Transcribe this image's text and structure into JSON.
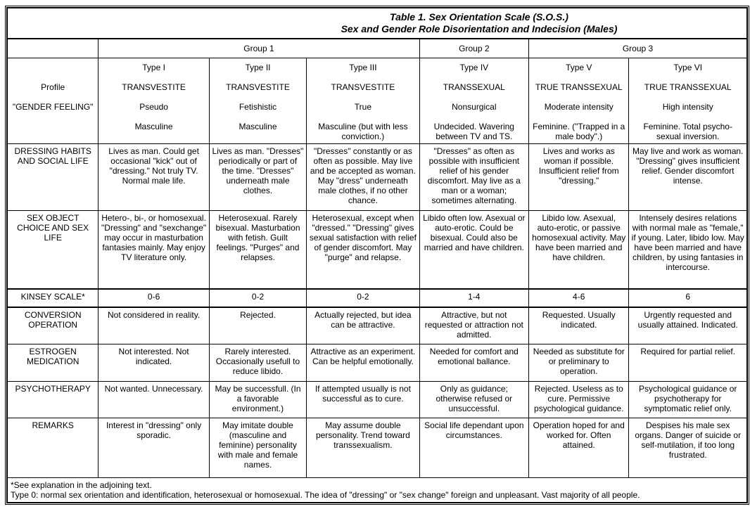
{
  "title": {
    "line1": "Table 1. Sex Orientation Scale (S.O.S.)",
    "line2": "Sex and Gender Role Disorientation and Indecision (Males)"
  },
  "groups": [
    "Group 1",
    "Group 2",
    "Group 3"
  ],
  "profile_labels": [
    "",
    "Profile",
    "\"GENDER FEELING\"",
    ""
  ],
  "types": [
    {
      "type": "Type I",
      "profile": "TRANSVESTITE",
      "feeling": "Pseudo",
      "gender": "Masculine"
    },
    {
      "type": "Type II",
      "profile": "TRANSVESTITE",
      "feeling": "Fetishistic",
      "gender": "Masculine"
    },
    {
      "type": "Type III",
      "profile": "TRANSVESTITE",
      "feeling": "True",
      "gender": "Masculine (but with less conviction.)"
    },
    {
      "type": "Type IV",
      "profile": "TRANSSEXUAL",
      "feeling": "Nonsurgical",
      "gender": "Undecided. Wavering between TV and TS."
    },
    {
      "type": "Type V",
      "profile": "TRUE TRANSSEXUAL",
      "feeling": "Moderate intensity",
      "gender": "Feminine. (\"Trapped in a male body\".)"
    },
    {
      "type": "Type VI",
      "profile": "TRUE TRANSSEXUAL",
      "feeling": "High intensity",
      "gender": "Feminine. Total psycho-sexual inversion."
    }
  ],
  "rows": [
    {
      "label": "DRESSING HABITS AND SOCIAL LIFE",
      "cells": [
        "Lives as man. Could get occasional \"kick\" out of \"dressing.\" Not truly TV. Normal male life.",
        "Lives as man. \"Dresses\" periodically or part of the time. \"Dresses\" underneath male clothes.",
        "\"Dresses\" constantly or as often as possible. May live and be accepted as woman. May \"dress\" underneath male clothes, if no other chance.",
        "\"Dresses\" as often as possible with insufficient relief of his gender discomfort. May live as a man or a woman; sometimes alternating.",
        "Lives and works as woman if possible. Insufficient relief from \"dressing.\"",
        "May live and work as woman. \"Dressing\" gives insufficient relief. Gender discomfort intense."
      ]
    },
    {
      "label": "SEX OBJECT CHOICE AND SEX LIFE",
      "cells": [
        "Hetero-, bi-, or homosexual. \"Dressing\" and \"sexchange\" may occur in masturbation fantasies mainly. May enjoy TV literature only.",
        "Heterosexual. Rarely bisexual. Masturbation with fetish. Guilt feelings. \"Purges\" and relapses.",
        "Heterosexual, except when \"dressed.\" \"Dressing\" gives sexual satisfaction with relief of gender discomfort. May \"purge\" and relapse.",
        "Libido often low. Asexual or auto-erotic. Could be bisexual. Could also be married and have children.",
        "Libido low. Asexual, auto-erotic, or passive homosexual activity. May have been married and have children.",
        "Intensely desires relations with normal male as \"female,\" if young. Later, libido low. May have been married and have children, by using fantasies in intercourse."
      ]
    },
    {
      "label": "KINSEY SCALE*",
      "cells": [
        "0-6",
        "0-2",
        "0-2",
        "1-4",
        "4-6",
        "6"
      ]
    },
    {
      "label": "CONVERSION OPERATION",
      "cells": [
        "Not considered in reality.",
        "Rejected.",
        "Actually rejected, but idea can be attractive.",
        "Attractive, but not requested or attraction not admitted.",
        "Requested. Usually indicated.",
        "Urgently requested and usually attained. Indicated."
      ]
    },
    {
      "label": "ESTROGEN MEDICATION",
      "cells": [
        "Not interested. Not indicated.",
        "Rarely interested. Occasionally usefull to reduce libido.",
        "Attractive as an experiment. Can be helpful emotionally.",
        "Needed for comfort and emotional ballance.",
        "Needed as substitute for or preliminary to operation.",
        "Required for partial relief."
      ]
    },
    {
      "label": "PSYCHOTHERAPY",
      "cells": [
        "Not wanted. Unnecessary.",
        "May be successfull. (In a favorable environment.)",
        "If attempted usually is not successful as to cure.",
        "Only as guidance; otherwise refused or unsuccessful.",
        "Rejected. Useless as to cure. Permissive psychological guidance.",
        "Psychological guidance or psychotherapy for symptomatic relief only."
      ]
    },
    {
      "label": "REMARKS",
      "cells": [
        "Interest in \"dressing\" only sporadic.",
        "May imitate double (masculine and feminine) personality with male and female names.",
        "May assume double personality. Trend toward transsexualism.",
        "Social life dependant upon circumstances.",
        "Operation hoped for and worked for. Often attained.",
        "Despises his male sex organs. Danger of suicide or self-mutilation, if too long frustrated."
      ]
    }
  ],
  "footnotes": [
    "*See explanation in the adjoining text.",
    "Type 0: normal sex orientation and identification, heterosexual or homosexual. The idea of \"dressing\" or \"sex change\" foreign and unpleasant. Vast majority of all people."
  ]
}
